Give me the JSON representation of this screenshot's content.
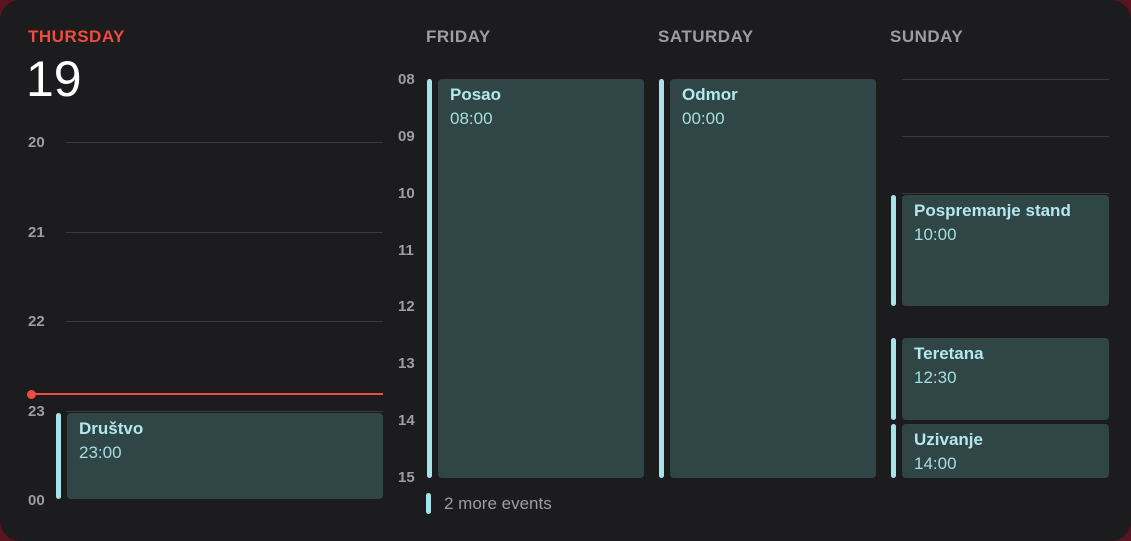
{
  "thursday": {
    "day_name": "THURSDAY",
    "day_number": "19",
    "hours": [
      "20",
      "21",
      "22",
      "23",
      "00"
    ],
    "events": [
      {
        "title": "Društvo",
        "time": "23:00"
      }
    ]
  },
  "days": {
    "friday": {
      "day_name": "FRIDAY",
      "events": [
        {
          "title": "Posao",
          "time": "08:00"
        }
      ]
    },
    "saturday": {
      "day_name": "SATURDAY",
      "events": [
        {
          "title": "Odmor",
          "time": "00:00"
        }
      ]
    },
    "sunday": {
      "day_name": "SUNDAY",
      "events": [
        {
          "title": "Pospremanje stand",
          "time": "10:00"
        },
        {
          "title": "Teretana",
          "time": "12:30"
        },
        {
          "title": "Uzivanje",
          "time": "14:00"
        }
      ]
    }
  },
  "week_hours": [
    "08",
    "09",
    "10",
    "11",
    "12",
    "13",
    "14",
    "15"
  ],
  "more_events": "2 more events",
  "colors": {
    "today": "#ef4b3f",
    "event_accent": "#a6e4ea",
    "event_bg": "#2f4546",
    "background": "#1c1c1e"
  }
}
